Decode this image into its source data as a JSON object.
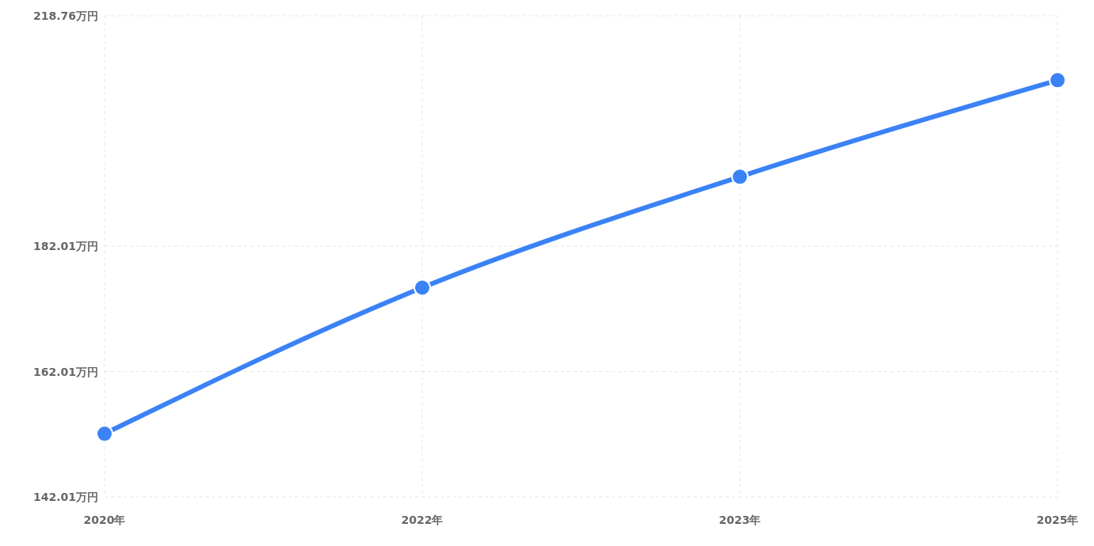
{
  "chart_data": {
    "type": "line",
    "categories": [
      "2020年",
      "2022年",
      "2023年",
      "2025年"
    ],
    "series": [
      {
        "color": "#3b82f6",
        "values": [
          152.1,
          175.4,
          193.1,
          208.5
        ]
      }
    ],
    "ylim": [
      142.01,
      218.76
    ],
    "yticks": [
      {
        "value": 142.01,
        "label": "142.01万円"
      },
      {
        "value": 162.01,
        "label": "162.01万円"
      },
      {
        "value": 182.01,
        "label": "182.01万円"
      },
      {
        "value": 218.76,
        "label": "218.76万円"
      }
    ],
    "grid": true,
    "marker": "circle",
    "line_style": "solid"
  }
}
